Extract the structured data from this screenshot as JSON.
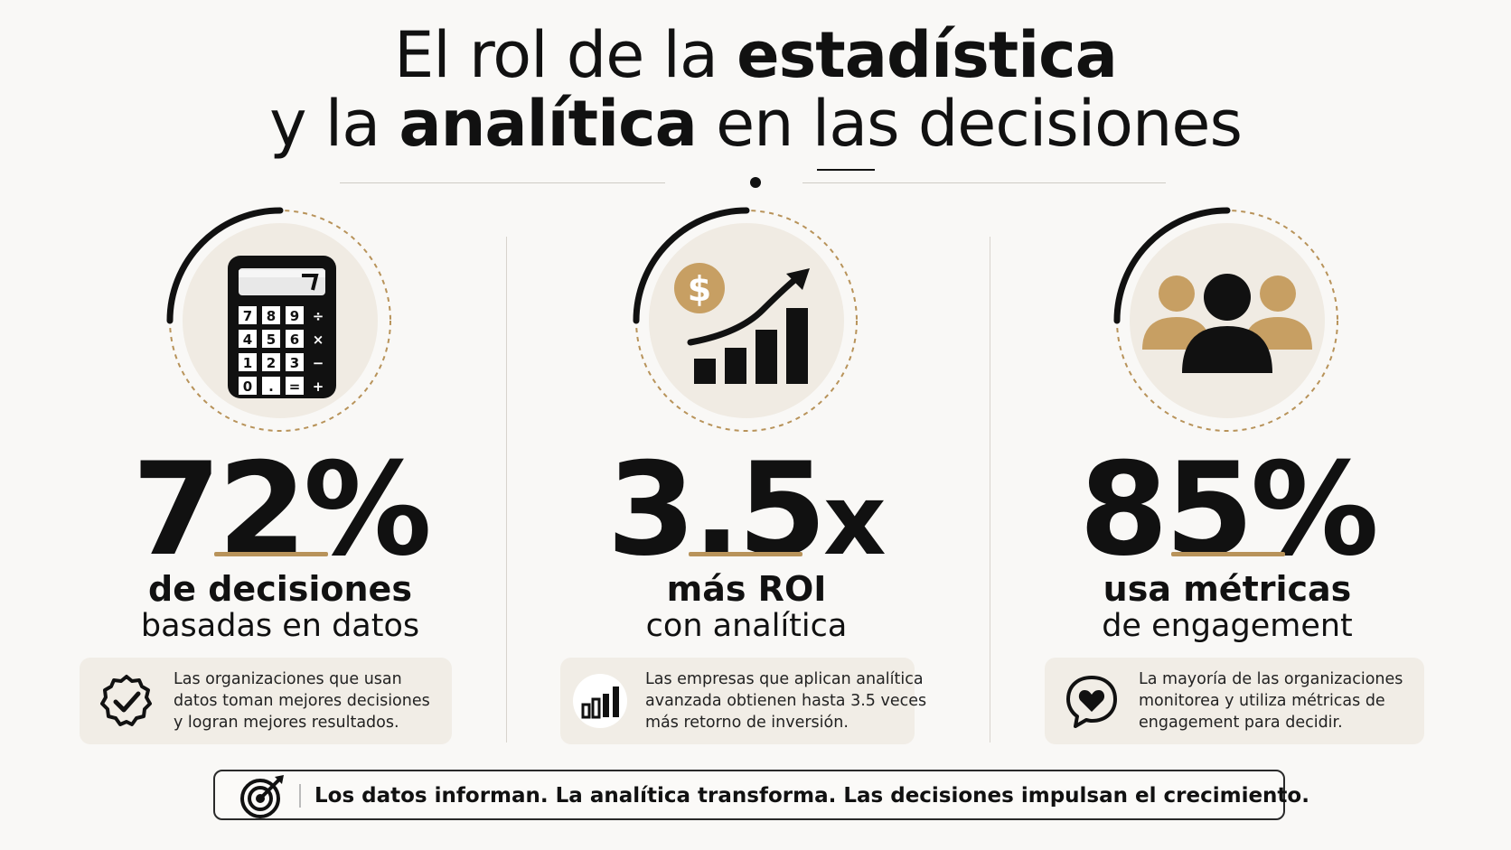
{
  "title": {
    "line1_regular": "El rol de la ",
    "line1_bold": "estadística",
    "line2_start": "y la ",
    "line2_bold": "analítica",
    "line2_end": " en las decisiones"
  },
  "stats": [
    {
      "value": "72",
      "unit": "%",
      "label_bold": "de decisiones",
      "label_regular": "basadas en datos",
      "icon": "calculator-icon",
      "description": [
        "Las organizaciones que usan",
        "datos toman mejores decisiones",
        "y logran mejores resultados."
      ],
      "card_icon": "check-badge-icon"
    },
    {
      "value": "3.5",
      "unit": "x",
      "label_bold": "más ROI",
      "label_regular": "con analítica",
      "icon": "growth-chart-icon",
      "description": [
        "Las empresas que aplican analítica",
        "avanzada obtienen hasta 3.5 veces",
        "más retorno de inversión."
      ],
      "card_icon": "bar-chart-icon"
    },
    {
      "value": "85",
      "unit": "%",
      "label_bold": "usa métricas",
      "label_regular": "de engagement",
      "icon": "people-group-icon",
      "description": [
        "La mayoría de las organizaciones",
        "monitorea y utiliza métricas de",
        "engagement para decidir."
      ],
      "card_icon": "heart-chat-icon"
    }
  ],
  "calculator_keys": [
    "7",
    "8",
    "9",
    "÷",
    "4",
    "5",
    "6",
    "×",
    "1",
    "2",
    "3",
    "−",
    "0",
    ".",
    "=",
    "+"
  ],
  "coin_symbol": "$",
  "footer": {
    "text": "Los datos informan. La analítica transforma. Las decisiones impulsan el crecimiento.",
    "icon": "target-arrow-icon"
  },
  "colors": {
    "accent": "#b8935a",
    "background": "#f9f8f6",
    "card_background": "#f1ede6",
    "text": "#111111"
  }
}
